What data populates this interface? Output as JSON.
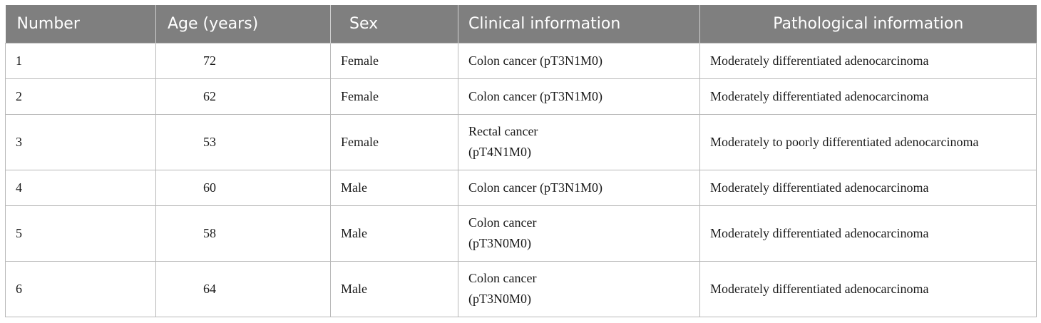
{
  "table": {
    "headers": {
      "number": "Number",
      "age": "Age (years)",
      "sex": "Sex",
      "clinical": "Clinical information",
      "pathological": "Pathological information"
    },
    "rows": [
      {
        "number": "1",
        "age": "72",
        "sex": "Female",
        "clinical_line1": "Colon cancer (pT3N1M0)",
        "clinical_line2": "",
        "pathological": "Moderately differentiated adenocarcinoma"
      },
      {
        "number": "2",
        "age": "62",
        "sex": "Female",
        "clinical_line1": "Colon cancer (pT3N1M0)",
        "clinical_line2": "",
        "pathological": "Moderately differentiated adenocarcinoma"
      },
      {
        "number": "3",
        "age": "53",
        "sex": "Female",
        "clinical_line1": "Rectal cancer",
        "clinical_line2": "(pT4N1M0)",
        "pathological": "Moderately to poorly differentiated adenocarcinoma"
      },
      {
        "number": "4",
        "age": "60",
        "sex": "Male",
        "clinical_line1": "Colon cancer (pT3N1M0)",
        "clinical_line2": "",
        "pathological": "Moderately differentiated adenocarcinoma"
      },
      {
        "number": "5",
        "age": "58",
        "sex": "Male",
        "clinical_line1": "Colon cancer",
        "clinical_line2": "(pT3N0M0)",
        "pathological": "Moderately differentiated adenocarcinoma"
      },
      {
        "number": "6",
        "age": "64",
        "sex": "Male",
        "clinical_line1": "Colon cancer",
        "clinical_line2": "(pT3N0M0)",
        "pathological": "Moderately differentiated adenocarcinoma"
      }
    ]
  },
  "colors": {
    "header_background": "#7f7f7f",
    "header_text": "#ffffff",
    "cell_border": "#b8b8b8"
  }
}
